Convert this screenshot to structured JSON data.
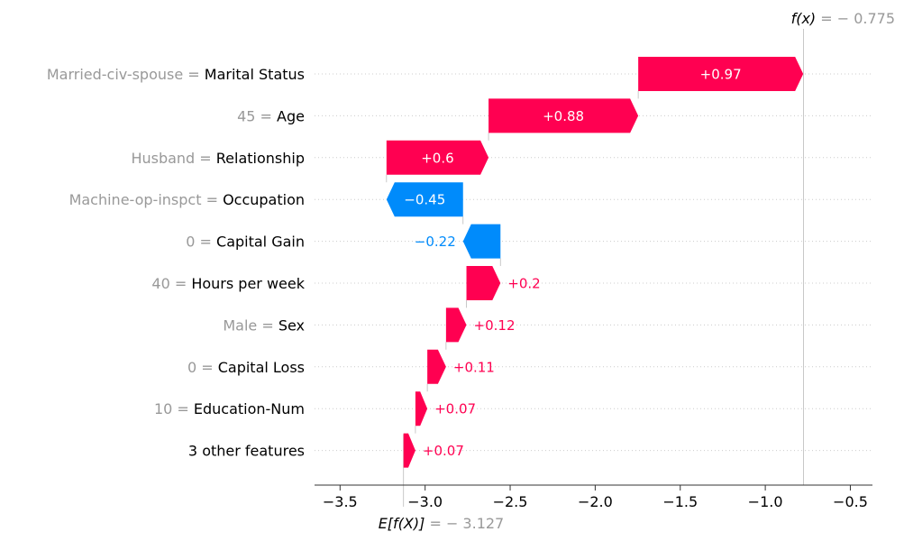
{
  "chart_data": {
    "type": "waterfall",
    "xlim": [
      -3.65,
      -0.37
    ],
    "xticks": [
      -3.5,
      -3.0,
      -2.5,
      -2.0,
      -1.5,
      -1.0,
      -0.5
    ],
    "xtick_labels": [
      "−3.5",
      "−3.0",
      "−2.5",
      "−2.0",
      "−1.5",
      "−1.0",
      "−0.5"
    ],
    "base_value": -3.127,
    "output_value": -0.775,
    "base_label": {
      "prefix": "E[f(X)]",
      "suffix": " = − 3.127"
    },
    "output_label": {
      "prefix": "f(x)",
      "suffix": " = − 0.775"
    },
    "grid": true,
    "colors": {
      "positive": "#ff0051",
      "negative": "#008bfb",
      "value_text": "#999999",
      "label_positive": "#ff0051",
      "label_negative": "#008bfb"
    },
    "features": [
      {
        "value": "Married-civ-spouse",
        "name": "Marital Status",
        "shap": 0.97,
        "label": "+0.97"
      },
      {
        "value": "45",
        "name": "Age",
        "shap": 0.88,
        "label": "+0.88"
      },
      {
        "value": "Husband",
        "name": "Relationship",
        "shap": 0.6,
        "label": "+0.6"
      },
      {
        "value": "Machine-op-inspct",
        "name": "Occupation",
        "shap": -0.45,
        "label": "−0.45"
      },
      {
        "value": "0",
        "name": "Capital Gain",
        "shap": -0.22,
        "label": "−0.22"
      },
      {
        "value": "40",
        "name": "Hours per week",
        "shap": 0.2,
        "label": "+0.2"
      },
      {
        "value": "Male",
        "name": "Sex",
        "shap": 0.12,
        "label": "+0.12"
      },
      {
        "value": "0",
        "name": "Capital Loss",
        "shap": 0.11,
        "label": "+0.11"
      },
      {
        "value": "10",
        "name": "Education-Num",
        "shap": 0.07,
        "label": "+0.07"
      },
      {
        "value": "",
        "name": "3 other features",
        "shap": 0.07,
        "label": "+0.07"
      }
    ]
  }
}
